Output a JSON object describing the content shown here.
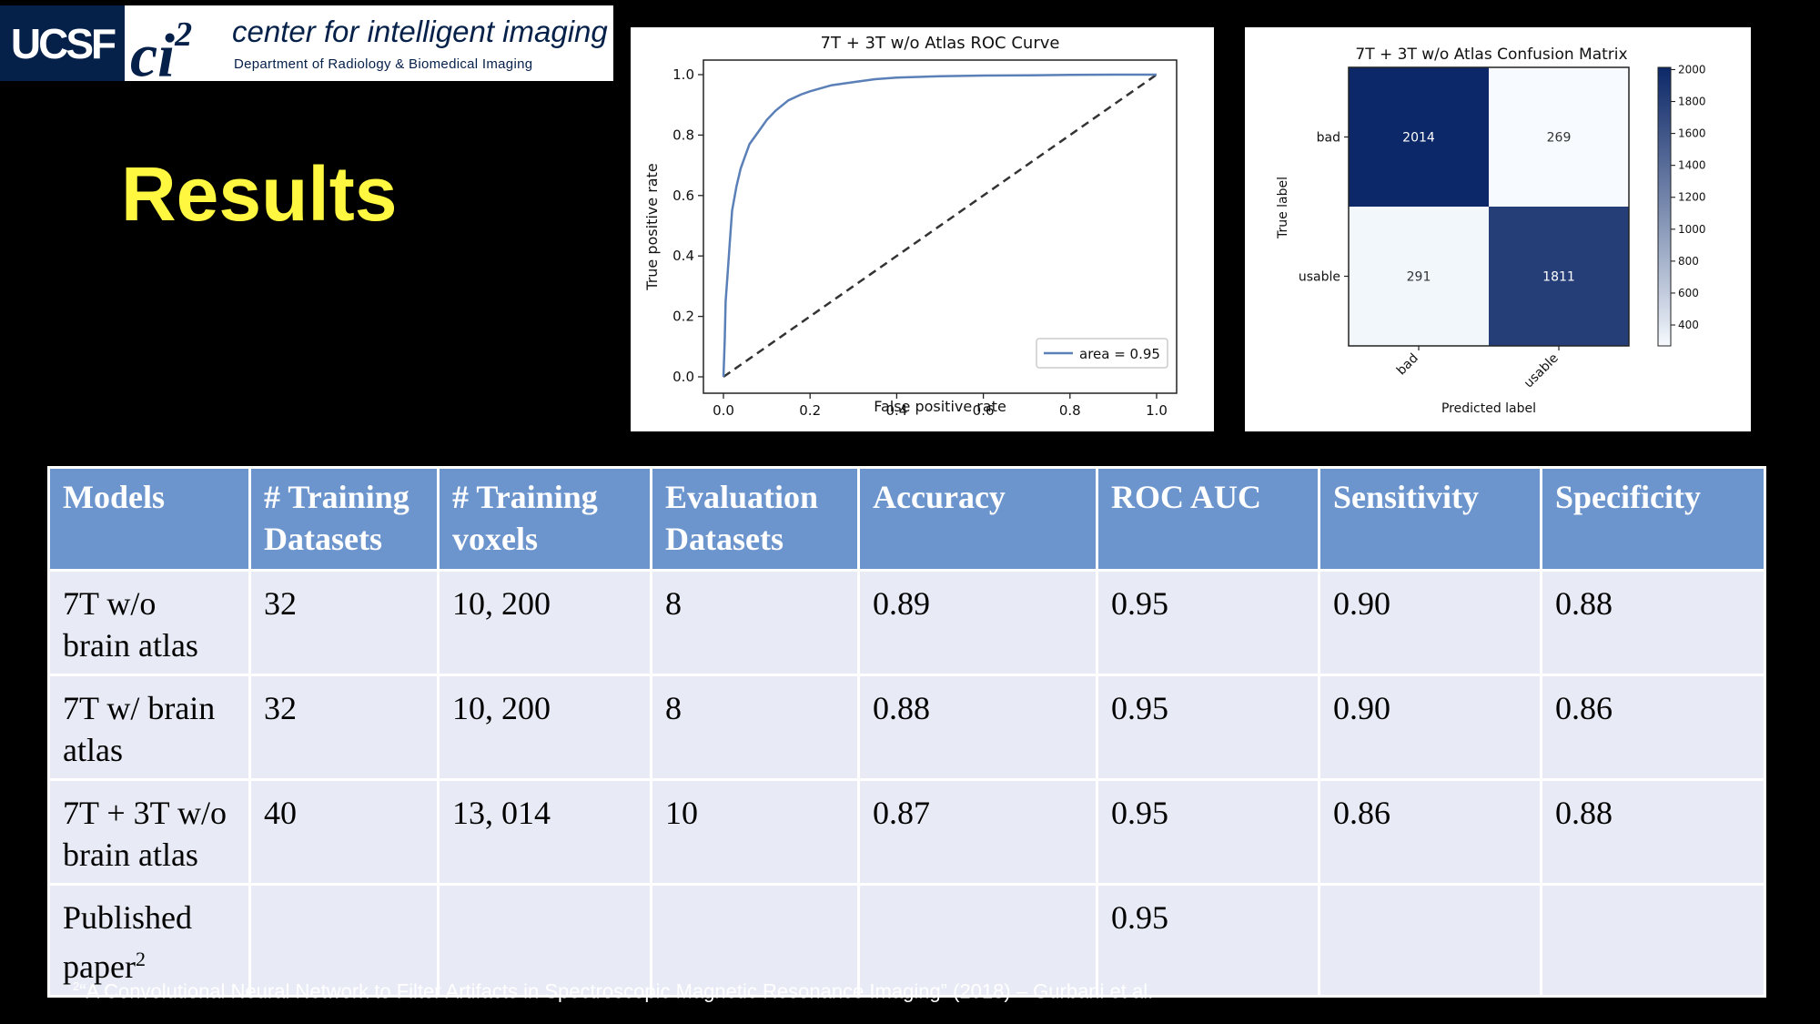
{
  "logo": {
    "ucsf": "UCSF",
    "ci": "ci",
    "ci_sup": "2",
    "name": "center for intelligent imaging",
    "dept": "Department of Radiology & Biomedical Imaging"
  },
  "title": "Results",
  "roc": {
    "title": "7T + 3T w/o Atlas ROC Curve",
    "xlabel": "False positive rate",
    "ylabel": "True positive rate",
    "xticks": [
      "0.0",
      "0.2",
      "0.4",
      "0.6",
      "0.8",
      "1.0"
    ],
    "yticks": [
      "0.0",
      "0.2",
      "0.4",
      "0.6",
      "0.8",
      "1.0"
    ],
    "legend": "area = 0.95"
  },
  "cm": {
    "title": "7T + 3T w/o Atlas Confusion Matrix",
    "ylabel": "True label",
    "xlabel": "Predicted label",
    "row_labels": [
      "bad",
      "usable"
    ],
    "col_labels": [
      "bad",
      "usable"
    ],
    "cells": [
      "2014",
      "269",
      "291",
      "1811"
    ],
    "colorbar_ticks": [
      "2000",
      "1800",
      "1600",
      "1400",
      "1200",
      "1000",
      "800",
      "600",
      "400"
    ]
  },
  "chart_data": [
    {
      "type": "line",
      "title": "7T + 3T w/o Atlas ROC Curve",
      "xlabel": "False positive rate",
      "ylabel": "True positive rate",
      "xlim": [
        0,
        1
      ],
      "ylim": [
        0,
        1
      ],
      "series": [
        {
          "name": "area = 0.95",
          "color": "#5b80b8",
          "x": [
            0,
            0.003,
            0.005,
            0.01,
            0.015,
            0.02,
            0.03,
            0.04,
            0.05,
            0.06,
            0.08,
            0.1,
            0.12,
            0.15,
            0.18,
            0.2,
            0.25,
            0.3,
            0.35,
            0.4,
            0.5,
            0.6,
            0.7,
            0.8,
            0.9,
            1.0
          ],
          "y": [
            0,
            0.12,
            0.25,
            0.35,
            0.45,
            0.55,
            0.63,
            0.69,
            0.73,
            0.77,
            0.81,
            0.85,
            0.88,
            0.915,
            0.935,
            0.945,
            0.965,
            0.975,
            0.985,
            0.99,
            0.995,
            0.997,
            0.998,
            0.999,
            1.0,
            1.0
          ]
        },
        {
          "color": "#333333",
          "dashed": true,
          "x": [
            0,
            1
          ],
          "y": [
            0,
            1
          ]
        }
      ],
      "legend": "lower right"
    },
    {
      "type": "heatmap",
      "title": "7T + 3T w/o Atlas Confusion Matrix",
      "xlabel": "Predicted label",
      "ylabel": "True label",
      "rows": [
        "bad",
        "usable"
      ],
      "cols": [
        "bad",
        "usable"
      ],
      "values": [
        [
          2014,
          269
        ],
        [
          291,
          1811
        ]
      ],
      "colorbar": [
        269,
        2014
      ]
    }
  ],
  "table": {
    "headers": [
      [
        "Models",
        ""
      ],
      [
        "# Training",
        "Datasets"
      ],
      [
        "# Training",
        "voxels"
      ],
      [
        "Evaluation",
        "Datasets"
      ],
      [
        "Accuracy",
        ""
      ],
      [
        "ROC AUC",
        ""
      ],
      [
        "Sensitivity",
        ""
      ],
      [
        "Specificity",
        ""
      ]
    ],
    "rows": [
      {
        "model": [
          "7T w/o",
          "brain atlas"
        ],
        "datasets": "32",
        "voxels": "10, 200",
        "eval": "8",
        "accuracy": "0.89",
        "auc": "0.95",
        "sensitivity": "0.90",
        "specificity": "0.88"
      },
      {
        "model": [
          "7T w/ brain",
          "atlas"
        ],
        "datasets": "32",
        "voxels": "10, 200",
        "eval": "8",
        "accuracy": "0.88",
        "auc": "0.95",
        "sensitivity": "0.90",
        "specificity": "0.86"
      },
      {
        "model": [
          "7T + 3T w/o",
          "brain atlas"
        ],
        "datasets": "40",
        "voxels": "13, 014",
        "eval": "10",
        "accuracy": "0.87",
        "auc": "0.95",
        "sensitivity": "0.86",
        "specificity": "0.88"
      },
      {
        "model": [
          "Published",
          "paper"
        ],
        "model_sup": "2",
        "datasets": "",
        "voxels": "",
        "eval": "",
        "accuracy": "",
        "auc": "0.95",
        "sensitivity": "",
        "specificity": ""
      }
    ]
  },
  "footnote": {
    "sup": "2",
    "text": "“A Convolutional Neural Network to Filter Artifacts in Spectroscopic Magnetic Resonance Imaging” (2018) – Gurbani et al."
  }
}
